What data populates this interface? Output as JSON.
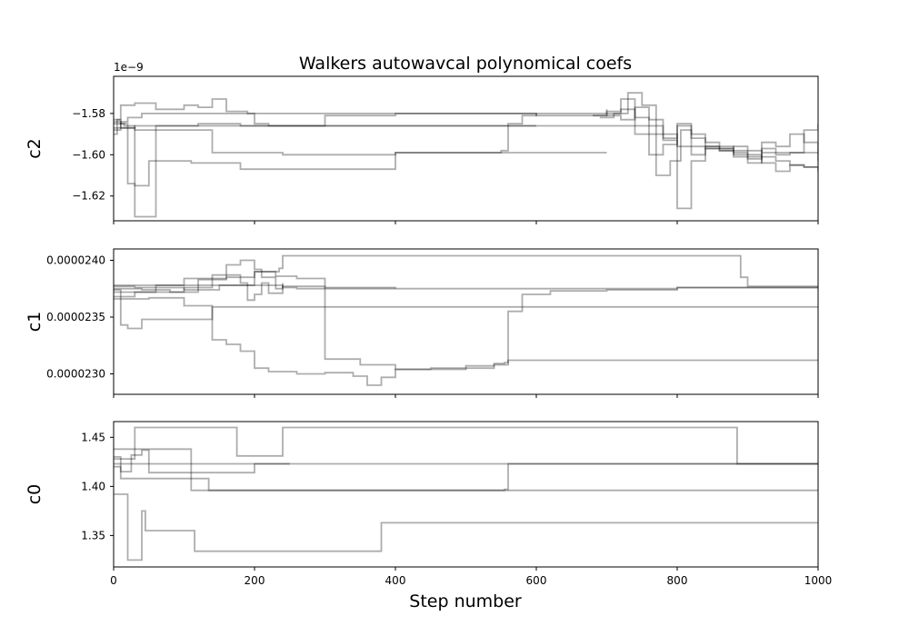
{
  "chart_data": {
    "type": "line",
    "title": "Walkers autowavcal polynomical coefs",
    "xlabel": "Step number",
    "xlim": [
      0,
      1000
    ],
    "xticks": [
      0,
      200,
      400,
      600,
      800,
      1000
    ],
    "xtick_labels": [
      "0",
      "200",
      "400",
      "600",
      "800",
      "1000"
    ],
    "line_color": "#000000",
    "panels": [
      {
        "ylabel": "c2",
        "offset_text": "1e−9",
        "ylim": [
          -1.632,
          -1.562
        ],
        "yticks": [
          -1.58,
          -1.6,
          -1.62
        ],
        "ytick_labels": [
          "−1.58",
          "−1.60",
          "−1.62"
        ],
        "series": [
          {
            "x": [
              0,
              10,
              20,
              40,
              60,
              100,
              150,
              200,
              260,
              300,
              400,
              500,
              600,
              650,
              700
            ],
            "values": [
              -1.588,
              -1.584,
              -1.582,
              -1.58,
              -1.58,
              -1.58,
              -1.58,
              -1.58,
              -1.58,
              -1.58,
              -1.58,
              -1.58,
              -1.58,
              -1.58,
              -1.58
            ]
          },
          {
            "x": [
              0,
              30,
              60,
              120,
              180,
              240,
              300,
              400,
              500,
              560,
              600,
              680,
              720,
              760,
              780,
              800,
              840,
              880,
              920,
              960,
              1000
            ],
            "values": [
              -1.587,
              -1.586,
              -1.586,
              -1.585,
              -1.586,
              -1.586,
              -1.586,
              -1.586,
              -1.586,
              -1.586,
              -1.586,
              -1.586,
              -1.586,
              -1.59,
              -1.593,
              -1.596,
              -1.597,
              -1.598,
              -1.599,
              -1.599,
              -1.599
            ]
          },
          {
            "x": [
              0,
              5,
              10,
              30,
              60,
              130,
              140,
              200,
              240,
              300,
              400,
              500,
              600,
              700
            ],
            "values": [
              -1.59,
              -1.583,
              -1.587,
              -1.588,
              -1.588,
              -1.588,
              -1.599,
              -1.599,
              -1.6,
              -1.6,
              -1.599,
              -1.599,
              -1.599,
              -1.599
            ]
          },
          {
            "x": [
              0,
              10,
              20,
              30,
              50,
              110,
              180,
              190,
              240,
              300,
              380,
              400,
              500,
              550,
              560,
              580,
              600
            ],
            "values": [
              -1.584,
              -1.585,
              -1.614,
              -1.615,
              -1.603,
              -1.604,
              -1.607,
              -1.607,
              -1.607,
              -1.607,
              -1.607,
              -1.599,
              -1.599,
              -1.598,
              -1.585,
              -1.581,
              -1.58
            ]
          },
          {
            "x": [
              0,
              10,
              30,
              60,
              100,
              120,
              140,
              160,
              190,
              200,
              220,
              300,
              400,
              500,
              600,
              700
            ],
            "values": [
              -1.583,
              -1.576,
              -1.575,
              -1.578,
              -1.576,
              -1.577,
              -1.573,
              -1.579,
              -1.58,
              -1.585,
              -1.586,
              -1.581,
              -1.58,
              -1.58,
              -1.581,
              -1.578
            ]
          },
          {
            "x": [
              0,
              15,
              30,
              60,
              100,
              150,
              200,
              240,
              300,
              400,
              500,
              560,
              600
            ],
            "values": [
              -1.585,
              -1.586,
              -1.63,
              -1.586,
              -1.586,
              -1.586,
              -1.586,
              -1.586,
              -1.586,
              -1.586,
              -1.586,
              -1.586,
              -1.586
            ]
          },
          {
            "x": [
              680,
              700,
              720,
              740,
              760,
              780,
              800,
              820,
              840,
              860,
              880,
              900,
              920,
              940,
              960,
              980,
              1000
            ],
            "values": [
              -1.581,
              -1.579,
              -1.573,
              -1.59,
              -1.6,
              -1.595,
              -1.586,
              -1.59,
              -1.594,
              -1.596,
              -1.599,
              -1.601,
              -1.601,
              -1.603,
              -1.605,
              -1.606,
              -1.606
            ]
          },
          {
            "x": [
              690,
              710,
              730,
              750,
              770,
              790,
              805,
              820,
              840,
              860,
              880,
              900,
              920,
              940,
              960,
              980,
              1000
            ],
            "values": [
              -1.582,
              -1.58,
              -1.57,
              -1.576,
              -1.61,
              -1.603,
              -1.588,
              -1.6,
              -1.596,
              -1.598,
              -1.601,
              -1.604,
              -1.597,
              -1.6,
              -1.599,
              -1.588,
              -1.585
            ]
          },
          {
            "x": [
              700,
              720,
              740,
              760,
              780,
              800,
              820,
              840,
              860,
              880,
              900,
              920,
              940,
              960,
              980,
              1000
            ],
            "values": [
              -1.581,
              -1.583,
              -1.577,
              -1.583,
              -1.59,
              -1.626,
              -1.603,
              -1.597,
              -1.597,
              -1.596,
              -1.6,
              -1.604,
              -1.608,
              -1.605,
              -1.606,
              -1.608
            ]
          },
          {
            "x": [
              700,
              720,
              740,
              760,
              780,
              800,
              820,
              840,
              860,
              880,
              900,
              920,
              940,
              960,
              980,
              1000
            ],
            "values": [
              -1.58,
              -1.578,
              -1.582,
              -1.586,
              -1.592,
              -1.585,
              -1.592,
              -1.596,
              -1.598,
              -1.6,
              -1.602,
              -1.594,
              -1.596,
              -1.59,
              -1.594,
              -1.603
            ]
          }
        ]
      },
      {
        "ylabel": "c1",
        "ylim": [
          2.282e-05,
          2.41e-05
        ],
        "yticks": [
          2.4e-05,
          2.35e-05,
          2.3e-05
        ],
        "ytick_labels": [
          "0.0000240",
          "0.0000235",
          "0.0000230"
        ],
        "series": [
          {
            "x": [
              0,
              40,
              80,
              120,
              160,
              200,
              240,
              260,
              300,
              400,
              500,
              600,
              700,
              800,
              880,
              900,
              1000
            ],
            "values": [
              2.378e-05,
              2.378e-05,
              2.378e-05,
              2.378e-05,
              2.378e-05,
              2.378e-05,
              2.376e-05,
              2.375e-05,
              2.375e-05,
              2.375e-05,
              2.375e-05,
              2.375e-05,
              2.375e-05,
              2.376e-05,
              2.376e-05,
              2.376e-05,
              2.376e-05
            ]
          },
          {
            "x": [
              0,
              30,
              60,
              100,
              150,
              200,
              235,
              240,
              300,
              400,
              500,
              600,
              700,
              800,
              880,
              890,
              900,
              1000
            ],
            "values": [
              2.377e-05,
              2.376e-05,
              2.376e-05,
              2.374e-05,
              2.378e-05,
              2.39e-05,
              2.393e-05,
              2.404e-05,
              2.404e-05,
              2.404e-05,
              2.404e-05,
              2.404e-05,
              2.404e-05,
              2.404e-05,
              2.404e-05,
              2.385e-05,
              2.377e-05,
              2.376e-05
            ]
          },
          {
            "x": [
              0,
              10,
              20,
              40,
              60,
              100,
              130,
              140,
              200,
              220,
              260,
              300,
              400,
              500,
              560,
              600,
              1000
            ],
            "values": [
              2.374e-05,
              2.343e-05,
              2.34e-05,
              2.348e-05,
              2.348e-05,
              2.348e-05,
              2.348e-05,
              2.359e-05,
              2.359e-05,
              2.359e-05,
              2.359e-05,
              2.359e-05,
              2.359e-05,
              2.359e-05,
              2.359e-05,
              2.359e-05,
              2.359e-05
            ]
          },
          {
            "x": [
              0,
              50,
              100,
              140,
              160,
              180,
              200,
              220,
              240,
              260,
              300,
              340,
              360,
              380,
              400,
              450,
              500,
              540,
              560,
              600,
              1000
            ],
            "values": [
              2.366e-05,
              2.367e-05,
              2.36e-05,
              2.33e-05,
              2.326e-05,
              2.32e-05,
              2.305e-05,
              2.302e-05,
              2.302e-05,
              2.3e-05,
              2.301e-05,
              2.298e-05,
              2.29e-05,
              2.297e-05,
              2.304e-05,
              2.305e-05,
              2.305e-05,
              2.308e-05,
              2.312e-05,
              2.312e-05,
              2.312e-05
            ]
          },
          {
            "x": [
              0,
              40,
              80,
              120,
              160,
              200,
              230,
              260,
              300,
              350,
              400,
              460,
              500,
              540,
              555,
              560,
              580,
              620,
              700,
              800,
              1000
            ],
            "values": [
              2.375e-05,
              2.374e-05,
              2.372e-05,
              2.383e-05,
              2.385e-05,
              2.39e-05,
              2.386e-05,
              2.384e-05,
              2.313e-05,
              2.308e-05,
              2.304e-05,
              2.304e-05,
              2.307e-05,
              2.309e-05,
              2.31e-05,
              2.355e-05,
              2.37e-05,
              2.373e-05,
              2.374e-05,
              2.376e-05,
              2.376e-05
            ]
          },
          {
            "x": [
              0,
              30,
              60,
              100,
              160,
              180,
              200,
              210,
              230,
              240,
              300,
              400
            ],
            "values": [
              2.368e-05,
              2.372e-05,
              2.378e-05,
              2.384e-05,
              2.396e-05,
              2.4e-05,
              2.392e-05,
              2.385e-05,
              2.375e-05,
              2.377e-05,
              2.376e-05,
              2.375e-05
            ]
          },
          {
            "x": [
              0,
              40,
              80,
              100,
              140,
              180,
              190,
              200,
              210,
              220,
              240
            ],
            "values": [
              2.372e-05,
              2.372e-05,
              2.372e-05,
              2.376e-05,
              2.387e-05,
              2.38e-05,
              2.365e-05,
              2.37e-05,
              2.38e-05,
              2.371e-05,
              2.38e-05
            ]
          }
        ]
      },
      {
        "ylabel": "c0",
        "ylim": [
          1.318,
          1.466
        ],
        "yticks": [
          1.45,
          1.4,
          1.35
        ],
        "ytick_labels": [
          "1.45",
          "1.40",
          "1.35"
        ],
        "series": [
          {
            "x": [
              0,
              100,
              200,
              300,
              400,
              500,
              600,
              700,
              800,
              900,
              1000
            ],
            "values": [
              1.423,
              1.423,
              1.423,
              1.423,
              1.423,
              1.423,
              1.423,
              1.423,
              1.423,
              1.423,
              1.423
            ]
          },
          {
            "x": [
              0,
              10,
              20,
              60,
              105,
              110,
              1000
            ],
            "values": [
              1.438,
              1.438,
              1.438,
              1.438,
              1.438,
              1.396,
              1.396
            ]
          },
          {
            "x": [
              0,
              15,
              30,
              60,
              100,
              170,
              175,
              235,
              240,
              600,
              880,
              885,
              1000
            ],
            "values": [
              1.428,
              1.428,
              1.46,
              1.46,
              1.46,
              1.46,
              1.431,
              1.431,
              1.46,
              1.46,
              1.46,
              1.423,
              1.423
            ]
          },
          {
            "x": [
              0,
              20,
              40,
              45,
              60,
              100,
              115,
              140,
              200,
              300,
              378,
              380,
              1000
            ],
            "values": [
              1.392,
              1.325,
              1.375,
              1.355,
              1.355,
              1.355,
              1.334,
              1.334,
              1.334,
              1.334,
              1.334,
              1.363,
              1.363
            ]
          },
          {
            "x": [
              0,
              10,
              30,
              60,
              100,
              130,
              135,
              200,
              300,
              400,
              500,
              555,
              560,
              1000
            ],
            "values": [
              1.42,
              1.408,
              1.408,
              1.408,
              1.408,
              1.408,
              1.396,
              1.396,
              1.396,
              1.396,
              1.396,
              1.397,
              1.423,
              1.423
            ]
          },
          {
            "x": [
              0,
              10,
              25,
              40,
              50,
              80,
              100,
              180,
              200,
              250
            ],
            "values": [
              1.43,
              1.415,
              1.432,
              1.437,
              1.414,
              1.414,
              1.414,
              1.414,
              1.423,
              1.423
            ]
          }
        ]
      }
    ]
  }
}
